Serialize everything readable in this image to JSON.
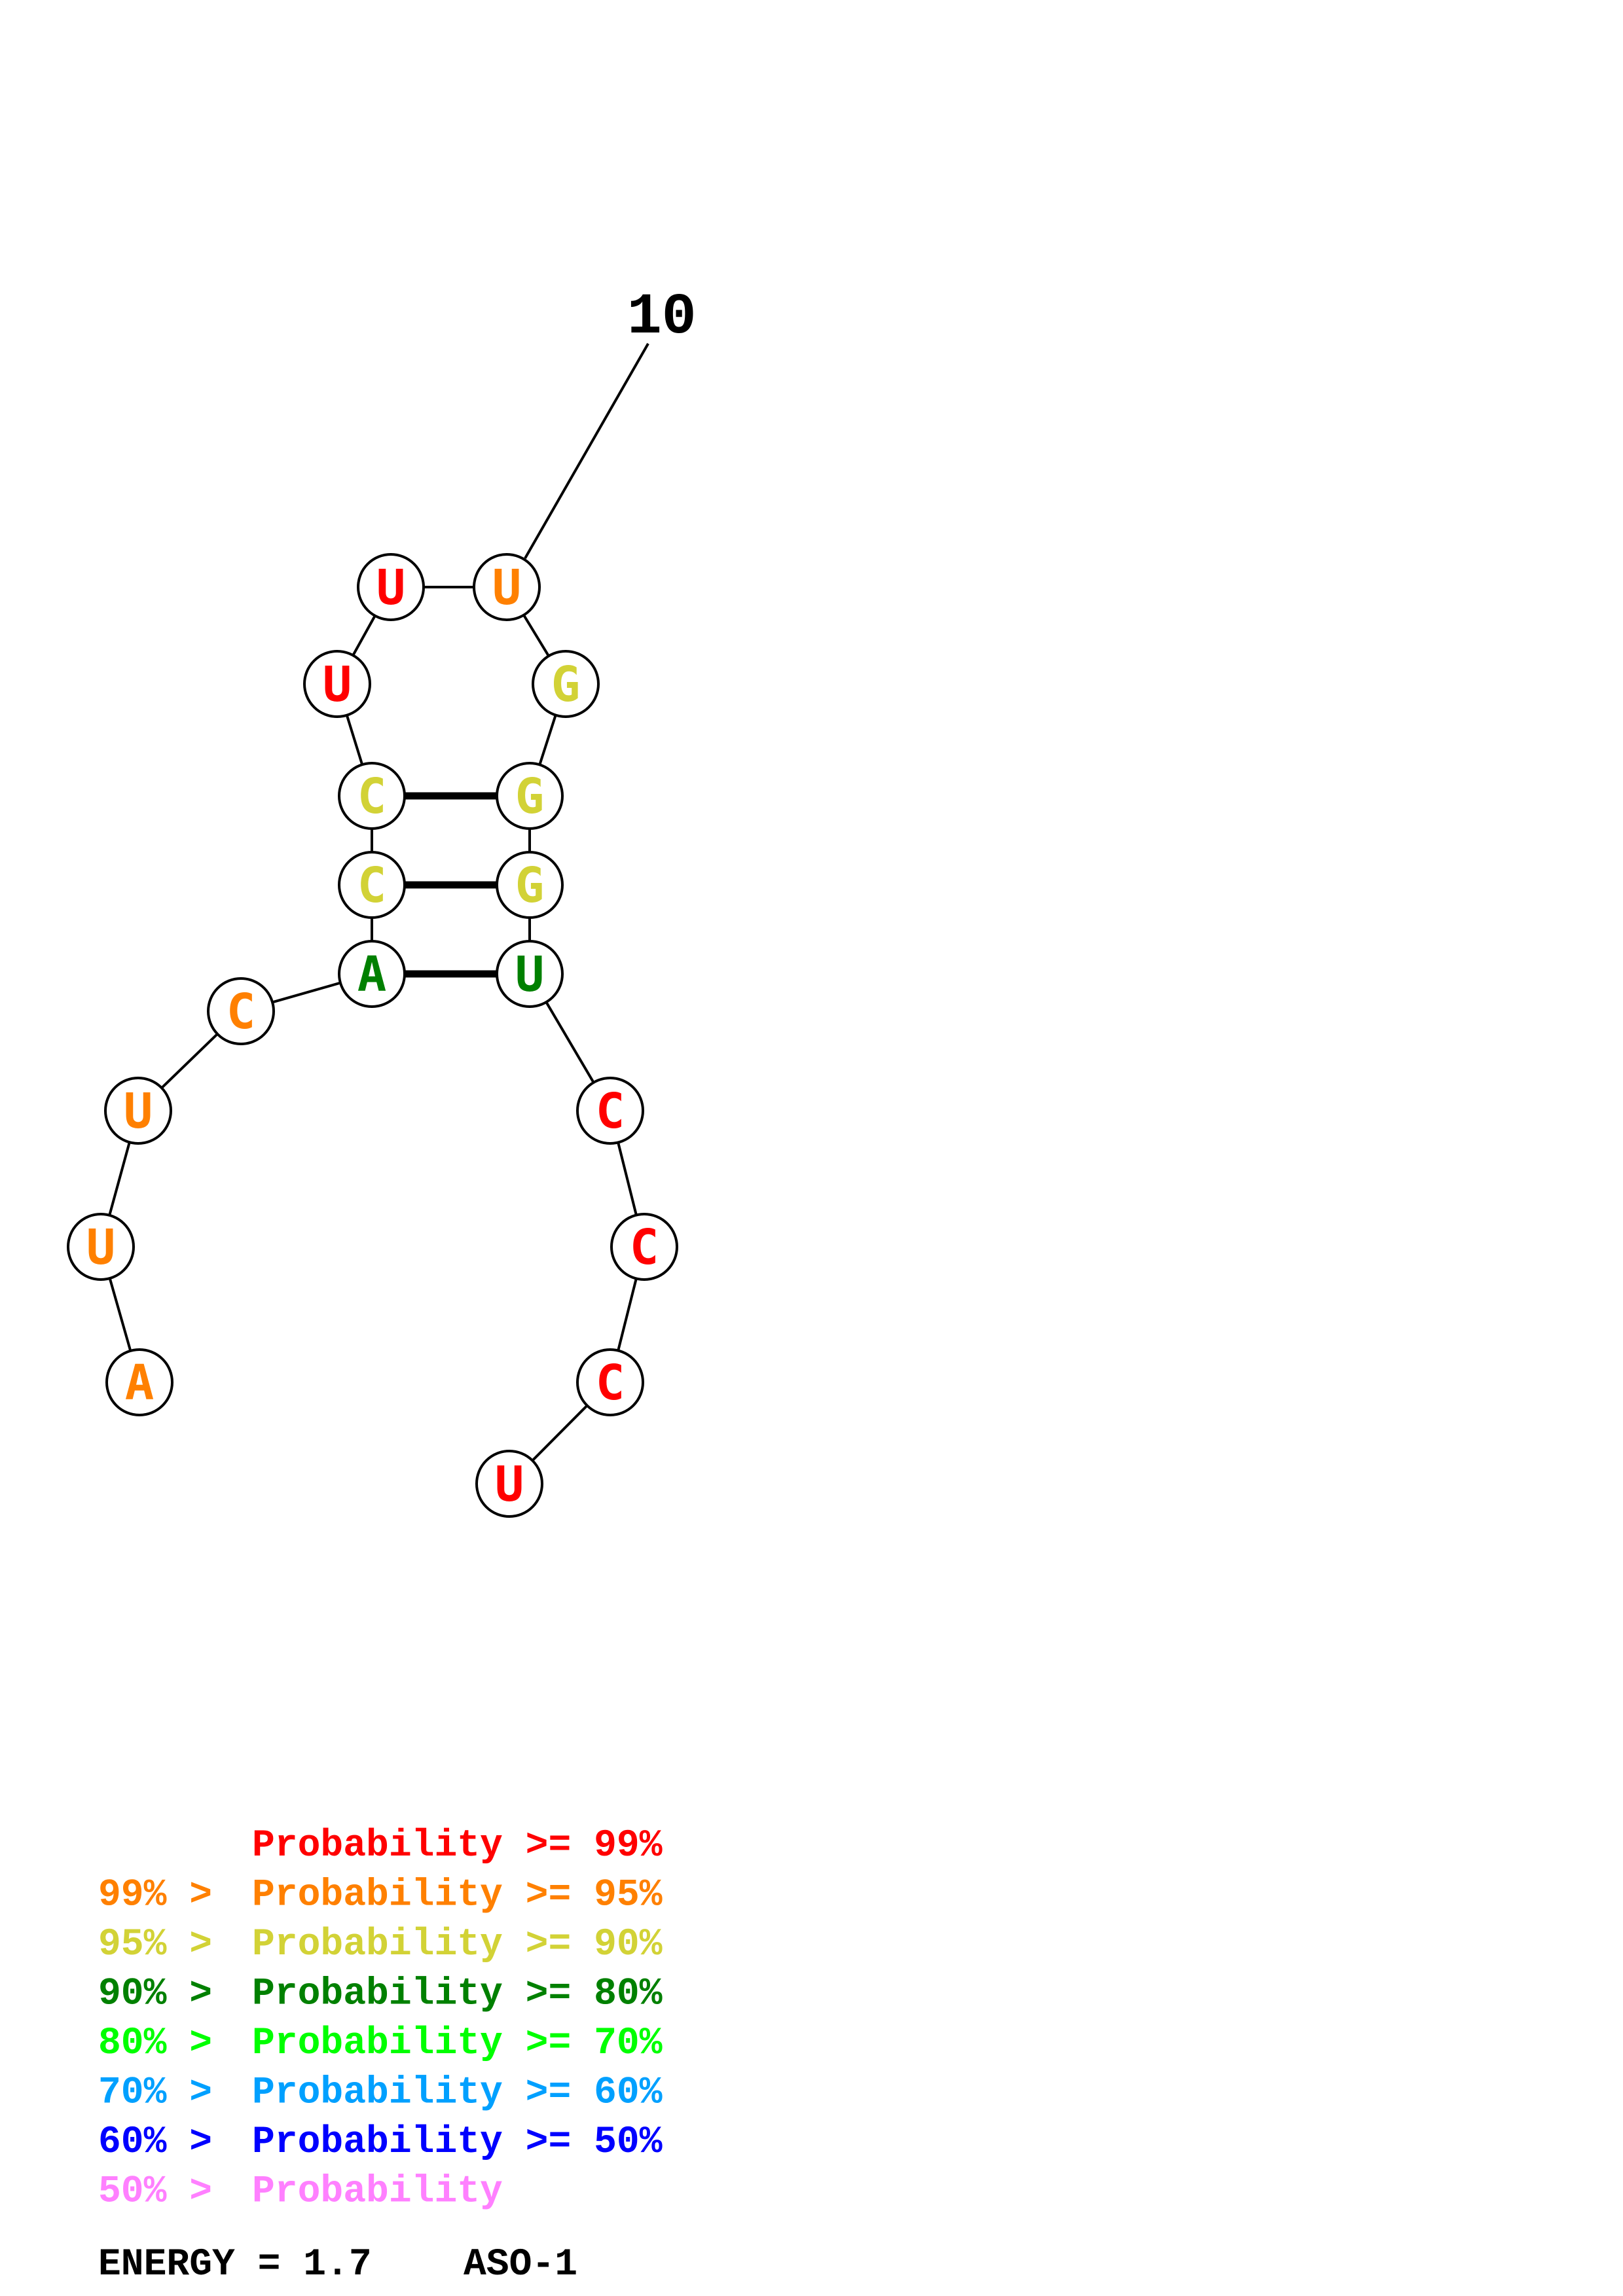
{
  "colors": {
    "p99": "#ff0000",
    "p95": "#ff8000",
    "p90": "#d2d236",
    "p80": "#008000",
    "p70": "#00ff00",
    "p60": "#00a0ff",
    "p50": "#0000ff",
    "lt50": "#ff80ff"
  },
  "structure": {
    "sequence": "AUUCACCUUUGGGUCCCU",
    "nucleotides": [
      {
        "base": "A",
        "level": "p95"
      },
      {
        "base": "U",
        "level": "p95"
      },
      {
        "base": "U",
        "level": "p95"
      },
      {
        "base": "C",
        "level": "p95"
      },
      {
        "base": "A",
        "level": "p80"
      },
      {
        "base": "C",
        "level": "p90"
      },
      {
        "base": "C",
        "level": "p90"
      },
      {
        "base": "U",
        "level": "p99"
      },
      {
        "base": "U",
        "level": "p99"
      },
      {
        "base": "U",
        "level": "p95"
      },
      {
        "base": "G",
        "level": "p90"
      },
      {
        "base": "G",
        "level": "p90"
      },
      {
        "base": "G",
        "level": "p90"
      },
      {
        "base": "U",
        "level": "p80"
      },
      {
        "base": "C",
        "level": "p99"
      },
      {
        "base": "C",
        "level": "p99"
      },
      {
        "base": "C",
        "level": "p99"
      },
      {
        "base": "U",
        "level": "p99"
      }
    ],
    "pairs": [
      [
        5,
        14
      ],
      [
        6,
        13
      ],
      [
        7,
        12
      ]
    ],
    "index_label": "10"
  },
  "legend": [
    {
      "prefix": "",
      "text": "Probability >= 99%",
      "level": "p99"
    },
    {
      "prefix": "99% > ",
      "text": "Probability >= 95%",
      "level": "p95"
    },
    {
      "prefix": "95% > ",
      "text": "Probability >= 90%",
      "level": "p90"
    },
    {
      "prefix": "90% > ",
      "text": "Probability >= 80%",
      "level": "p80"
    },
    {
      "prefix": "80% > ",
      "text": "Probability >= 70%",
      "level": "p70"
    },
    {
      "prefix": "70% > ",
      "text": "Probability >= 60%",
      "level": "p60"
    },
    {
      "prefix": "60% > ",
      "text": "Probability >= 50%",
      "level": "p50"
    },
    {
      "prefix": "50% > ",
      "text": "Probability",
      "level": "lt50"
    }
  ],
  "footer": {
    "energy": "ENERGY = 1.7",
    "name": "ASO-1"
  }
}
